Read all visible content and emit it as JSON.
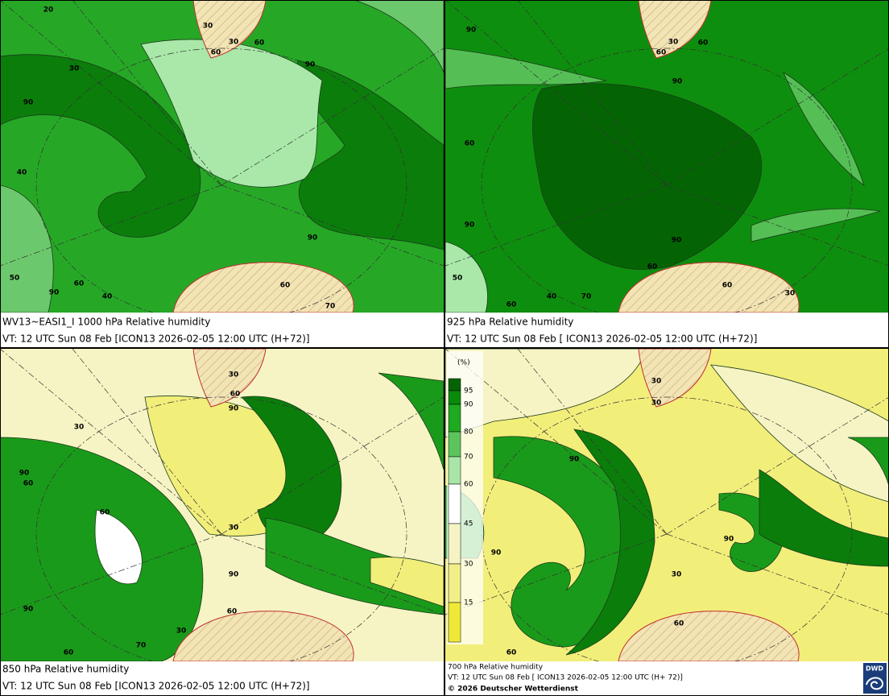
{
  "panels": [
    {
      "caption": "WV13~EASI1_I 1000 hPa Relative humidity",
      "valid_time": "VT: 12 UTC Sun  08 Feb [ICON13 2026-02-05 12:00 UTC  (H+72)]",
      "contour_labels": [
        20,
        30,
        30,
        60,
        60,
        90,
        30,
        90,
        40,
        90,
        50,
        60,
        90,
        40,
        60,
        70
      ]
    },
    {
      "caption": "925 hPa Relative humidity",
      "valid_time": "VT: 12 UTC Sun  08 Feb [ ICON13 2026-02-05 12:00 UTC  (H+72)]",
      "contour_labels": [
        90,
        30,
        60,
        60,
        90,
        60,
        90,
        90,
        60,
        50,
        60,
        40,
        70,
        60,
        30
      ]
    },
    {
      "caption": "850 hPa  Relative humidity",
      "valid_time": "VT: 12 UTC Sun  08 Feb [ICON13 2026-02-05 12:00 UTC (H+72)]",
      "contour_labels": [
        30,
        60,
        90,
        30,
        90,
        60,
        60,
        30,
        90,
        90,
        60,
        30,
        70,
        60
      ]
    },
    {
      "caption": "700 hPa Relative humidity",
      "valid_time": "VT: 12 UTC Sun  08 Feb [ ICON13 2026-02-05 12:00 UTC  (H+ 72)]",
      "contour_labels": [
        30,
        30,
        90,
        90,
        90,
        30,
        60,
        60
      ]
    }
  ],
  "legend": {
    "unit": "(%)",
    "levels": [
      95,
      90,
      80,
      70,
      60,
      45,
      30,
      15
    ],
    "colors": [
      "#046404",
      "#0a8a0a",
      "#1faa1f",
      "#5cc45c",
      "#a8e6a8",
      "#ffffff",
      "#f6f4c4",
      "#f3ef88",
      "#efe936"
    ]
  },
  "copyright": "© 2026 Deutscher Wetterdienst",
  "logo": "DWD"
}
